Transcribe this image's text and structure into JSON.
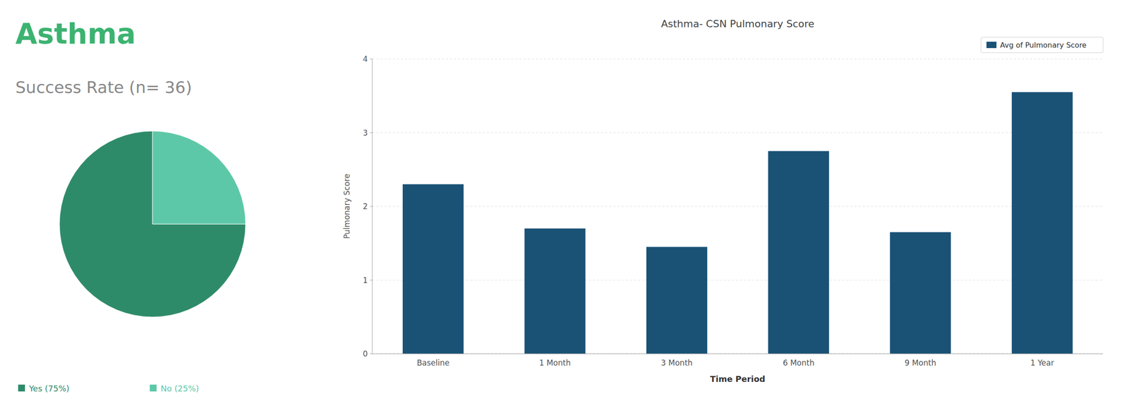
{
  "chart_data": [
    {
      "type": "pie",
      "title": "Asthma",
      "subtitle": "Success Rate (n= 36)",
      "categories": [
        "Yes (75%)",
        "No (25%)"
      ],
      "values": [
        75,
        25
      ],
      "colors": [
        "#2e8b6a",
        "#5dc8a8"
      ]
    },
    {
      "type": "bar",
      "title": "Asthma- CSN Pulmonary Score",
      "categories": [
        "Baseline",
        "1 Month",
        "3 Month",
        "6 Month",
        "9 Month",
        "1 Year"
      ],
      "series": [
        {
          "name": "Avg of Pulmonary Score",
          "color": "#1a5276",
          "values": [
            2.3,
            1.7,
            1.45,
            2.75,
            1.65,
            3.55
          ]
        }
      ],
      "xlabel": "Time Period",
      "ylabel": "Pulmonary Score",
      "ylim": [
        0,
        4
      ],
      "yticks": [
        0,
        1,
        2,
        3,
        4
      ],
      "grid": true,
      "legend": "upper right"
    }
  ]
}
